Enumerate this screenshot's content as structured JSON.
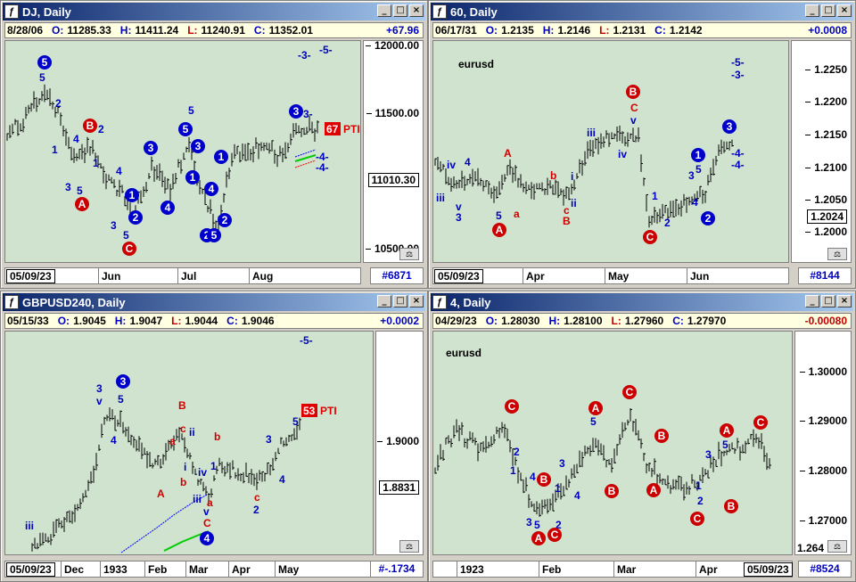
{
  "panels": [
    {
      "id": "dj",
      "title": "DJ, Daily",
      "active": true,
      "quote": {
        "date": "8/28/06",
        "o": "11285.33",
        "h": "11411.24",
        "l": "11240.91",
        "c": "11352.01",
        "change": "+67.96"
      },
      "axis_ticks": [
        "12000.00",
        "11500.00",
        "10500.00"
      ],
      "price_flag": "11010.30",
      "timebar_date": "05/09/23",
      "time_labels": [
        "Jun",
        "Jul",
        "Aug"
      ],
      "count": "#6871",
      "text_labels": [
        "5",
        "2",
        "1",
        "4",
        "2",
        "1",
        "4",
        "3",
        "5",
        "3",
        "5",
        "5",
        "-3-",
        "-5-",
        "-4-",
        "-4-",
        "3-"
      ],
      "pti": {
        "value": "67",
        "label": "PTI"
      },
      "circle_labels": [
        "5",
        "B",
        "A",
        "C",
        "1",
        "2",
        "3",
        "4",
        "5",
        "1",
        "2",
        "1",
        "2",
        "3",
        "4",
        "5",
        "3"
      ]
    },
    {
      "id": "eurusd60",
      "title": "60, Daily",
      "active": false,
      "quote": {
        "date": "06/17/31",
        "o": "1.2135",
        "h": "1.2146",
        "l": "1.2131",
        "c": "1.2142",
        "change": "+0.0008"
      },
      "axis_ticks": [
        "1.2250",
        "1.2200",
        "1.2150",
        "1.2100",
        "1.2050",
        "1.2000"
      ],
      "price_flag": "1.2024",
      "timebar_date": "05/09/23",
      "time_labels": [
        "Apr",
        "May",
        "Jun"
      ],
      "count": "#8144",
      "chart_title": "eurusd",
      "text_labels": [
        "iii",
        "iv",
        "v",
        "4",
        "3",
        "A",
        "5",
        "a",
        "b",
        "c",
        "B",
        "i",
        "ii",
        "iii",
        "iv",
        "v",
        "C",
        "1",
        "2",
        "3",
        "4",
        "5",
        "-5-",
        "-3-",
        "-4-",
        "-4-",
        "3-"
      ],
      "circle_labels": [
        "A",
        "B",
        "C",
        "1",
        "2",
        "3"
      ]
    },
    {
      "id": "gbpusd",
      "title": "GBPUSD240, Daily",
      "active": false,
      "quote": {
        "date": "05/15/33",
        "o": "1.9045",
        "h": "1.9047",
        "l": "1.9044",
        "c": "1.9046",
        "change": "+0.0002"
      },
      "axis_ticks": [
        "1.9000"
      ],
      "price_flag": "1.8831",
      "timebar_date": "05/09/23",
      "time_labels": [
        "Dec",
        "1933",
        "Feb",
        "Mar",
        "Apr",
        "May"
      ],
      "count": "#-.1734",
      "text_labels": [
        "iii",
        "3",
        "v",
        "5",
        "4",
        "B",
        "a",
        "c",
        "ii",
        "i",
        "b",
        "A",
        "iv",
        "iii",
        "v",
        "a",
        "C",
        "b",
        "1",
        "3",
        "c",
        "2",
        "4",
        "5",
        "-5-"
      ],
      "pti": {
        "value": "53",
        "label": "PTI"
      },
      "circle_labels": [
        "3",
        "4"
      ]
    },
    {
      "id": "eurusd4",
      "title": "4, Daily",
      "active": false,
      "quote": {
        "date": "04/29/23",
        "o": "1.28030",
        "h": "1.28100",
        "l": "1.27960",
        "c": "1.27970",
        "change": "-0.00080"
      },
      "axis_ticks": [
        "1.30000",
        "1.29000",
        "1.28000",
        "1.27000",
        "1.264"
      ],
      "timebar_date": "05/09/23",
      "time_labels": [
        "1923",
        "Feb",
        "Mar",
        "Apr"
      ],
      "count": "#8524",
      "chart_title": "eurusd",
      "text_labels": [
        "2",
        "1",
        "3",
        "4",
        "5",
        "2",
        "1",
        "3",
        "4",
        "5",
        "1",
        "2",
        "3",
        "5"
      ],
      "circle_labels": [
        "C",
        "B",
        "A",
        "C",
        "A",
        "B",
        "C",
        "B",
        "A",
        "A",
        "C",
        "B",
        "C"
      ]
    }
  ]
}
